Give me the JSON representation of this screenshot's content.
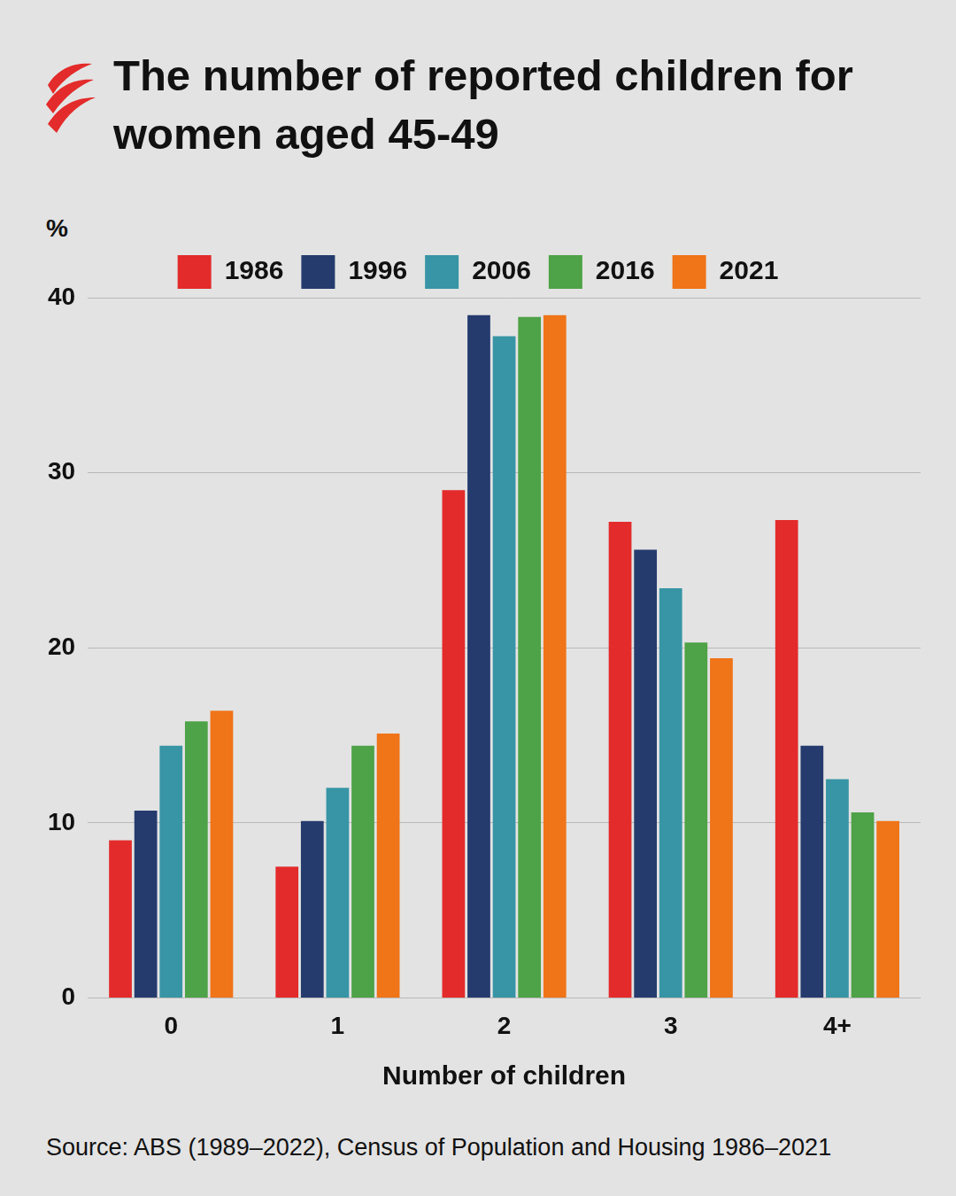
{
  "chart_data": {
    "type": "bar",
    "title": "The number of reported children for women aged 45-49",
    "y_label": "%",
    "x_label": "Number of children",
    "source": "Source: ABS (1989–2022), Census of Population and Housing 1986–2021",
    "categories": [
      "0",
      "1",
      "2",
      "3",
      "4+"
    ],
    "series": [
      {
        "name": "1986",
        "color": "#e32b2b",
        "values": [
          9.0,
          7.5,
          29.0,
          27.2,
          27.3
        ]
      },
      {
        "name": "1996",
        "color": "#253b6e",
        "values": [
          10.7,
          10.1,
          39.0,
          25.6,
          14.4
        ]
      },
      {
        "name": "2006",
        "color": "#3795a5",
        "values": [
          14.4,
          12.0,
          37.8,
          23.4,
          12.5
        ]
      },
      {
        "name": "2016",
        "color": "#4ea247",
        "values": [
          15.8,
          14.4,
          38.9,
          20.3,
          10.6
        ]
      },
      {
        "name": "2021",
        "color": "#f07418",
        "values": [
          16.4,
          15.1,
          39.0,
          19.4,
          10.1
        ]
      }
    ],
    "ylim": [
      0,
      40
    ],
    "yticks": [
      0,
      10,
      20,
      30,
      40
    ],
    "grid": true,
    "legend": "top"
  }
}
